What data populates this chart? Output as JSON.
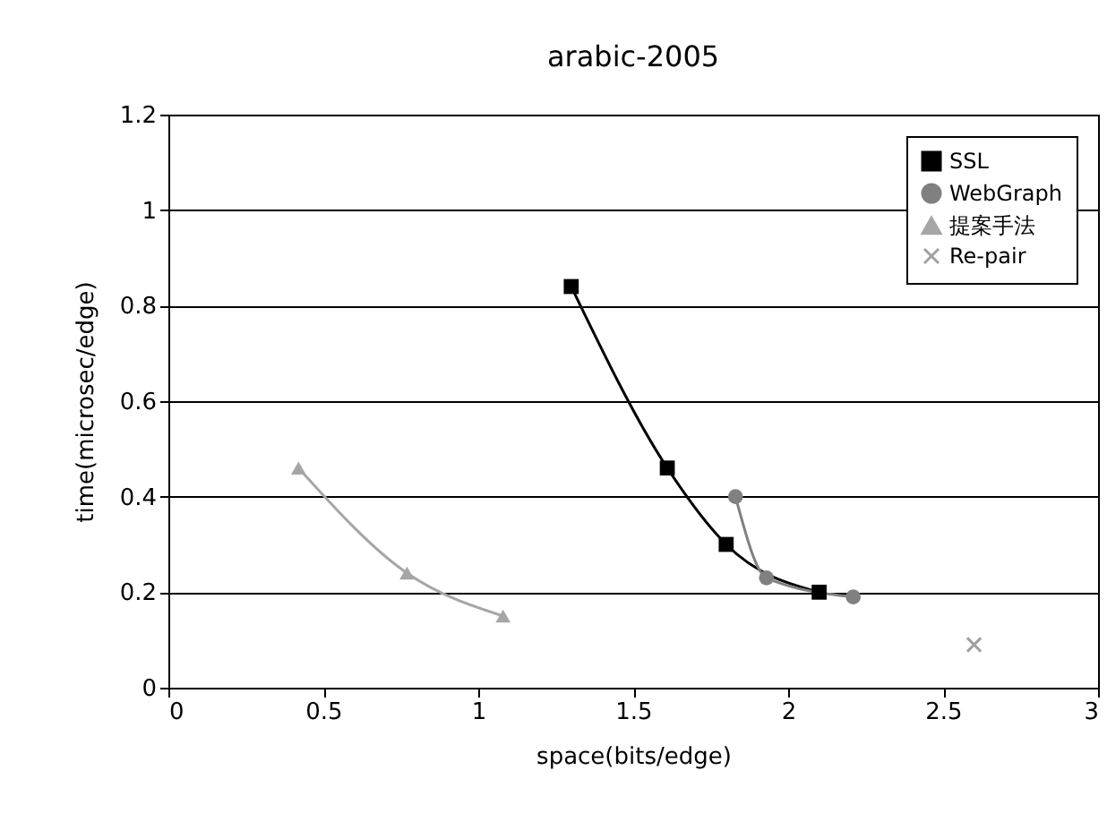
{
  "chart_data": {
    "type": "line",
    "title": "arabic-2005",
    "xlabel": "space(bits/edge)",
    "ylabel": "time(microsec/edge)",
    "xlim": [
      0,
      3
    ],
    "ylim": [
      0,
      1.2
    ],
    "xticks": [
      0,
      0.5,
      1,
      1.5,
      2,
      2.5,
      3
    ],
    "yticks": [
      0,
      0.2,
      0.4,
      0.6,
      0.8,
      1,
      1.2
    ],
    "grid": "y",
    "legend": "top right",
    "series": [
      {
        "name": "SSL",
        "color": "#000000",
        "marker": "square",
        "x": [
          1.3,
          1.61,
          1.8,
          2.1
        ],
        "values": [
          0.84,
          0.46,
          0.3,
          0.2
        ]
      },
      {
        "name": "WebGraph",
        "color": "#808080",
        "marker": "circle",
        "x": [
          1.83,
          1.93,
          2.21
        ],
        "values": [
          0.4,
          0.23,
          0.19
        ]
      },
      {
        "name": "提案手法",
        "color": "#a6a6a6",
        "marker": "triangle",
        "x": [
          0.42,
          0.77,
          1.08
        ],
        "values": [
          0.46,
          0.24,
          0.15
        ]
      },
      {
        "name": "Re-pair",
        "color": "#a0a0a0",
        "type": "scatter",
        "marker": "cross",
        "x": [
          2.6
        ],
        "values": [
          0.09
        ]
      }
    ]
  }
}
